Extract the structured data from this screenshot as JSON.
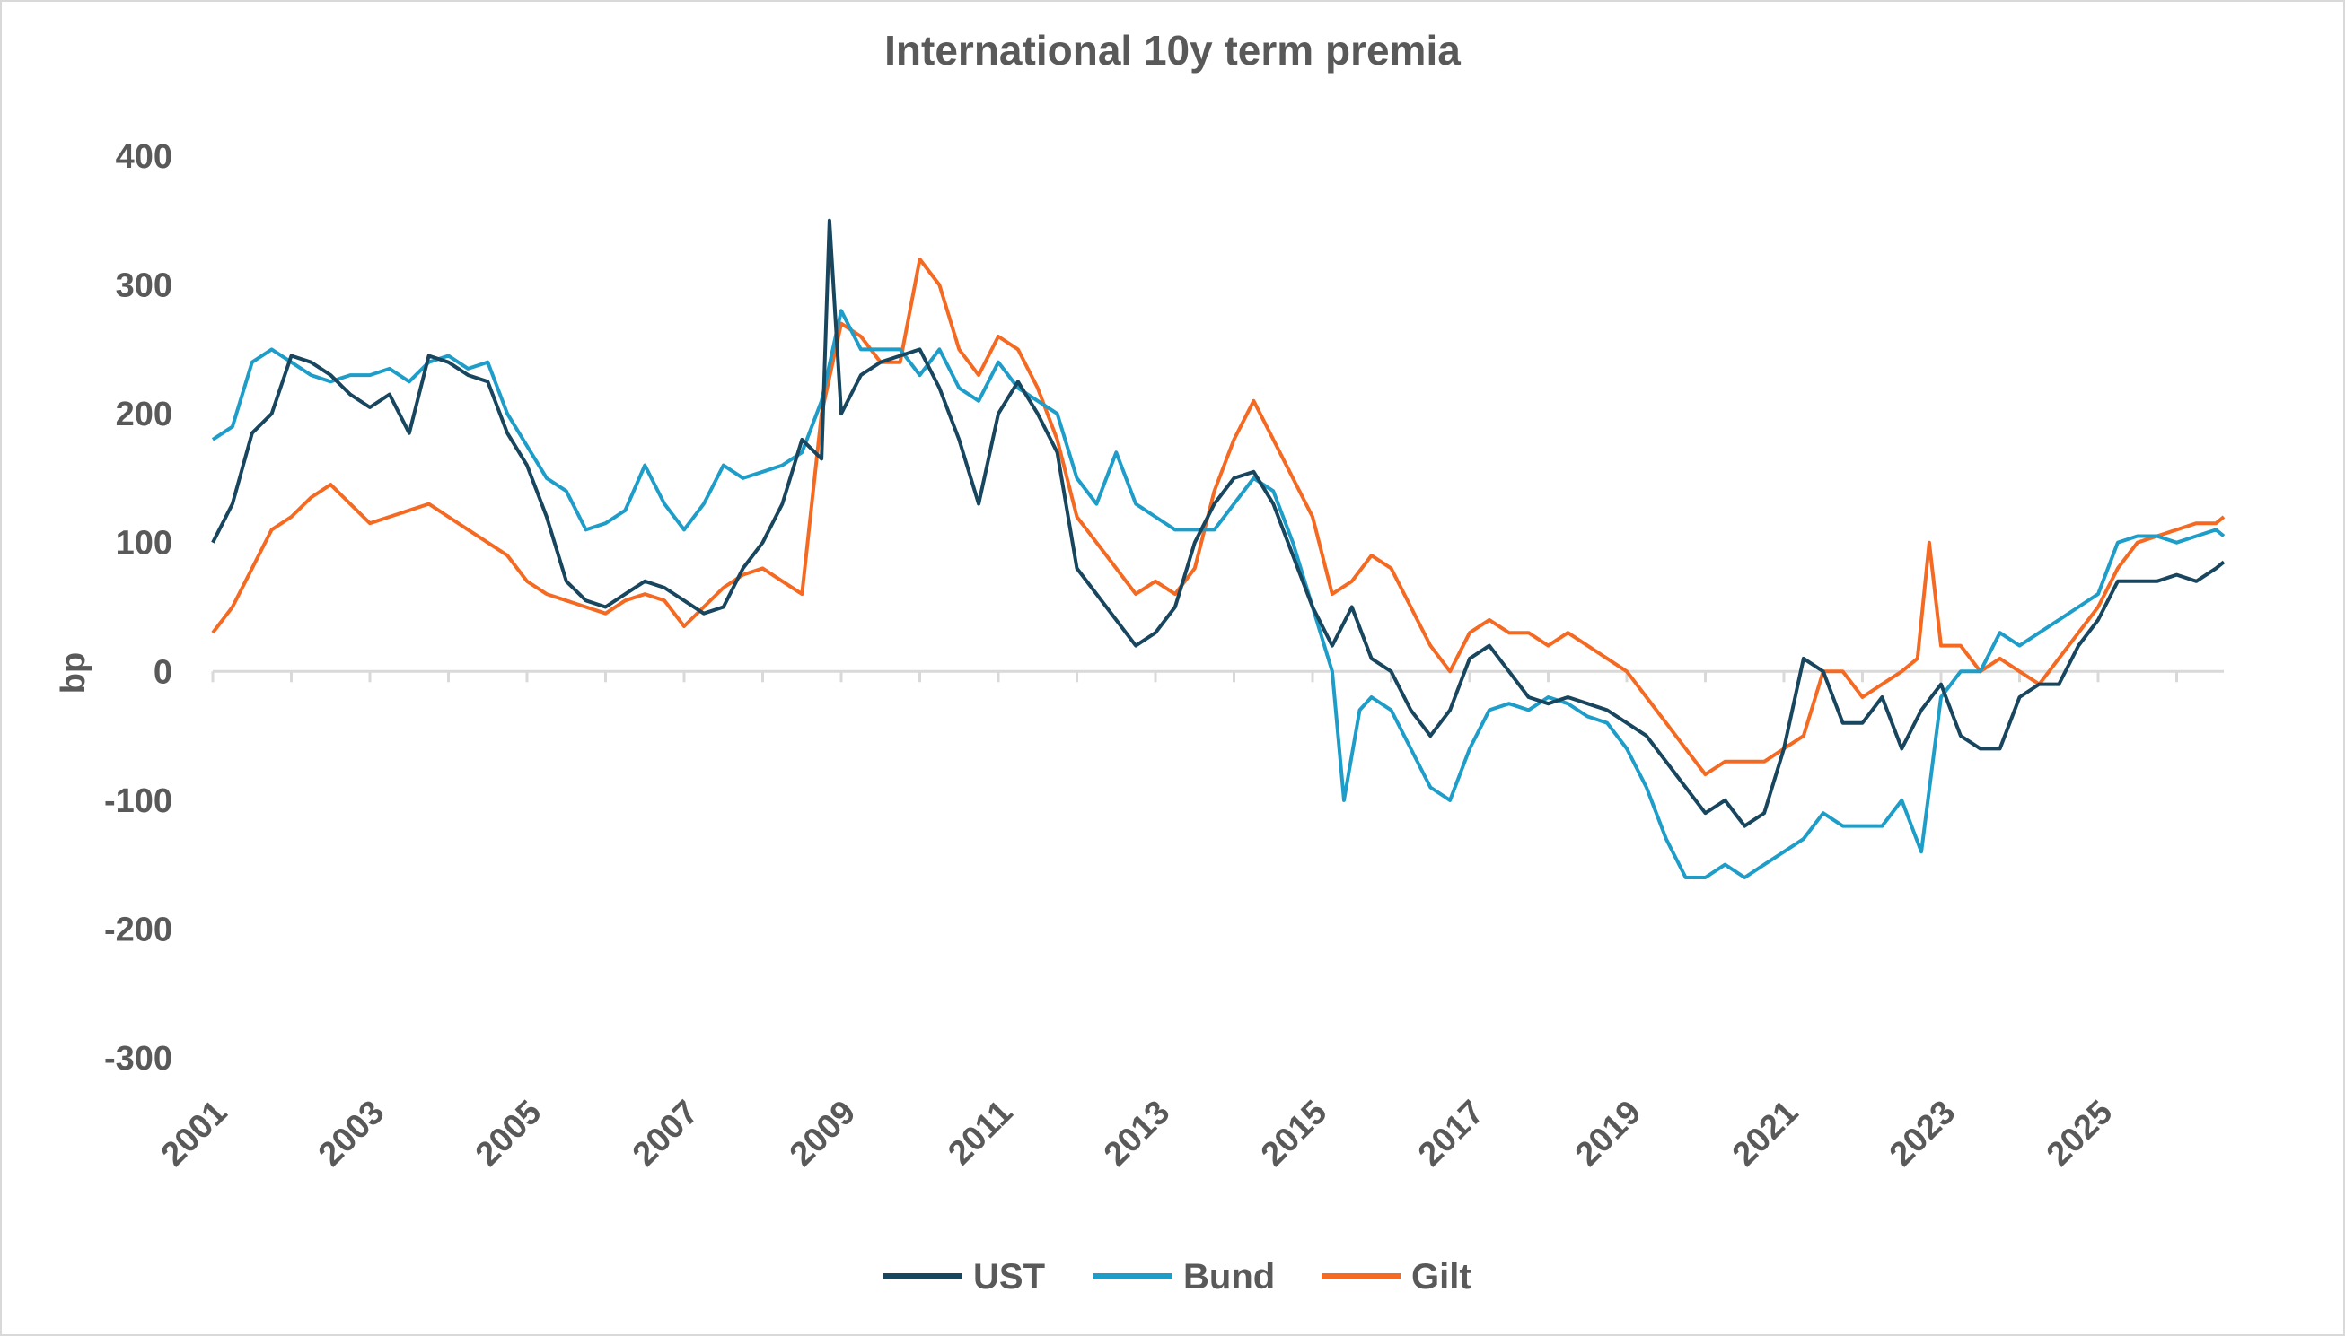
{
  "chart_data": {
    "type": "line",
    "title": "International 10y term premia",
    "xlabel": "",
    "ylabel": "bp",
    "ylim": [
      -300,
      400
    ],
    "yticks": [
      400,
      300,
      200,
      100,
      0,
      -100,
      -200,
      -300
    ],
    "xlim": [
      2001.0,
      2026.6
    ],
    "xticks": [
      "2001",
      "2003",
      "2005",
      "2007",
      "2009",
      "2011",
      "2013",
      "2015",
      "2017",
      "2019",
      "2021",
      "2023",
      "2025"
    ],
    "grid": false,
    "legend_position": "bottom",
    "colors": {
      "UST": "#17465e",
      "Bund": "#1f9dc9",
      "Gilt": "#f56a22",
      "axis": "#d9d9d9",
      "text": "#595959"
    },
    "series": [
      {
        "name": "UST",
        "x": [
          2001.0,
          2001.25,
          2001.5,
          2001.75,
          2002.0,
          2002.25,
          2002.5,
          2002.75,
          2003.0,
          2003.25,
          2003.5,
          2003.75,
          2004.0,
          2004.25,
          2004.5,
          2004.75,
          2005.0,
          2005.25,
          2005.5,
          2005.75,
          2006.0,
          2006.25,
          2006.5,
          2006.75,
          2007.0,
          2007.25,
          2007.5,
          2007.75,
          2008.0,
          2008.25,
          2008.5,
          2008.75,
          2008.85,
          2009.0,
          2009.25,
          2009.5,
          2009.75,
          2010.0,
          2010.25,
          2010.5,
          2010.75,
          2011.0,
          2011.25,
          2011.5,
          2011.75,
          2012.0,
          2012.25,
          2012.5,
          2012.75,
          2013.0,
          2013.25,
          2013.5,
          2013.75,
          2014.0,
          2014.25,
          2014.5,
          2014.75,
          2015.0,
          2015.25,
          2015.5,
          2015.75,
          2016.0,
          2016.25,
          2016.5,
          2016.75,
          2017.0,
          2017.25,
          2017.5,
          2017.75,
          2018.0,
          2018.25,
          2018.5,
          2018.75,
          2019.0,
          2019.25,
          2019.5,
          2019.75,
          2020.0,
          2020.25,
          2020.5,
          2020.75,
          2021.0,
          2021.25,
          2021.5,
          2021.75,
          2022.0,
          2022.25,
          2022.5,
          2022.75,
          2023.0,
          2023.25,
          2023.5,
          2023.75,
          2024.0,
          2024.25,
          2024.5,
          2024.75,
          2025.0,
          2025.25,
          2025.5,
          2025.75,
          2026.0,
          2026.25,
          2026.5,
          2026.6
        ],
        "values": [
          100,
          130,
          185,
          200,
          245,
          240,
          230,
          215,
          205,
          215,
          185,
          245,
          240,
          230,
          225,
          185,
          160,
          120,
          70,
          55,
          50,
          60,
          70,
          65,
          55,
          45,
          50,
          80,
          100,
          130,
          180,
          165,
          350,
          200,
          230,
          240,
          245,
          250,
          220,
          180,
          130,
          200,
          225,
          200,
          170,
          80,
          60,
          40,
          20,
          30,
          50,
          100,
          130,
          150,
          155,
          130,
          90,
          50,
          20,
          50,
          10,
          0,
          -30,
          -50,
          -30,
          10,
          20,
          0,
          -20,
          -25,
          -20,
          -25,
          -30,
          -40,
          -50,
          -70,
          -90,
          -110,
          -100,
          -120,
          -110,
          -60,
          10,
          0,
          -40,
          -40,
          -20,
          -60,
          -30,
          -10,
          -50,
          -60,
          -60,
          -20,
          -10,
          -10,
          20,
          40,
          70,
          70,
          70,
          75,
          70,
          80,
          85
        ]
      },
      {
        "name": "Bund",
        "x": [
          2001.0,
          2001.25,
          2001.5,
          2001.75,
          2002.0,
          2002.25,
          2002.5,
          2002.75,
          2003.0,
          2003.25,
          2003.5,
          2003.75,
          2004.0,
          2004.25,
          2004.5,
          2004.75,
          2005.0,
          2005.25,
          2005.5,
          2005.75,
          2006.0,
          2006.25,
          2006.5,
          2006.75,
          2007.0,
          2007.25,
          2007.5,
          2007.75,
          2008.0,
          2008.25,
          2008.5,
          2008.75,
          2009.0,
          2009.25,
          2009.5,
          2009.75,
          2010.0,
          2010.25,
          2010.5,
          2010.75,
          2011.0,
          2011.25,
          2011.5,
          2011.75,
          2012.0,
          2012.25,
          2012.5,
          2012.75,
          2013.0,
          2013.25,
          2013.5,
          2013.75,
          2014.0,
          2014.25,
          2014.5,
          2014.75,
          2015.0,
          2015.25,
          2015.4,
          2015.6,
          2015.75,
          2016.0,
          2016.25,
          2016.5,
          2016.75,
          2017.0,
          2017.25,
          2017.5,
          2017.75,
          2018.0,
          2018.25,
          2018.5,
          2018.75,
          2019.0,
          2019.25,
          2019.5,
          2019.75,
          2020.0,
          2020.25,
          2020.5,
          2020.75,
          2021.0,
          2021.25,
          2021.5,
          2021.75,
          2022.0,
          2022.25,
          2022.5,
          2022.75,
          2023.0,
          2023.25,
          2023.5,
          2023.75,
          2024.0,
          2024.25,
          2024.5,
          2024.75,
          2025.0,
          2025.25,
          2025.5,
          2025.75,
          2026.0,
          2026.25,
          2026.5,
          2026.6
        ],
        "values": [
          180,
          190,
          240,
          250,
          240,
          230,
          225,
          230,
          230,
          235,
          225,
          240,
          245,
          235,
          240,
          200,
          175,
          150,
          140,
          110,
          115,
          125,
          160,
          130,
          110,
          130,
          160,
          150,
          155,
          160,
          170,
          210,
          280,
          250,
          250,
          250,
          230,
          250,
          220,
          210,
          240,
          220,
          210,
          200,
          150,
          130,
          170,
          130,
          120,
          110,
          110,
          110,
          130,
          150,
          140,
          100,
          50,
          0,
          -100,
          -30,
          -20,
          -30,
          -60,
          -90,
          -100,
          -60,
          -30,
          -25,
          -30,
          -20,
          -25,
          -35,
          -40,
          -60,
          -90,
          -130,
          -160,
          -160,
          -150,
          -160,
          -150,
          -140,
          -130,
          -110,
          -120,
          -120,
          -120,
          -100,
          -140,
          -20,
          0,
          0,
          30,
          20,
          30,
          40,
          50,
          60,
          100,
          105,
          105,
          100,
          105,
          110,
          105
        ]
      },
      {
        "name": "Gilt",
        "x": [
          2001.0,
          2001.25,
          2001.5,
          2001.75,
          2002.0,
          2002.25,
          2002.5,
          2002.75,
          2003.0,
          2003.25,
          2003.5,
          2003.75,
          2004.0,
          2004.25,
          2004.5,
          2004.75,
          2005.0,
          2005.25,
          2005.5,
          2005.75,
          2006.0,
          2006.25,
          2006.5,
          2006.75,
          2007.0,
          2007.25,
          2007.5,
          2007.75,
          2008.0,
          2008.25,
          2008.5,
          2008.75,
          2009.0,
          2009.25,
          2009.5,
          2009.75,
          2010.0,
          2010.25,
          2010.5,
          2010.75,
          2011.0,
          2011.25,
          2011.5,
          2011.75,
          2012.0,
          2012.25,
          2012.5,
          2012.75,
          2013.0,
          2013.25,
          2013.5,
          2013.75,
          2014.0,
          2014.25,
          2014.5,
          2014.75,
          2015.0,
          2015.25,
          2015.5,
          2015.75,
          2016.0,
          2016.25,
          2016.5,
          2016.75,
          2017.0,
          2017.25,
          2017.5,
          2017.75,
          2018.0,
          2018.25,
          2018.5,
          2018.75,
          2019.0,
          2019.25,
          2019.5,
          2019.75,
          2020.0,
          2020.25,
          2020.5,
          2020.75,
          2021.0,
          2021.25,
          2021.5,
          2021.75,
          2022.0,
          2022.25,
          2022.5,
          2022.7,
          2022.85,
          2023.0,
          2023.25,
          2023.5,
          2023.75,
          2024.0,
          2024.25,
          2024.5,
          2024.75,
          2025.0,
          2025.25,
          2025.5,
          2025.75,
          2026.0,
          2026.25,
          2026.5,
          2026.6
        ],
        "values": [
          30,
          50,
          80,
          110,
          120,
          135,
          145,
          130,
          115,
          120,
          125,
          130,
          120,
          110,
          100,
          90,
          70,
          60,
          55,
          50,
          45,
          55,
          60,
          55,
          35,
          50,
          65,
          75,
          80,
          70,
          60,
          200,
          270,
          260,
          240,
          240,
          320,
          300,
          250,
          230,
          260,
          250,
          220,
          180,
          120,
          100,
          80,
          60,
          70,
          60,
          80,
          140,
          180,
          210,
          180,
          150,
          120,
          60,
          70,
          90,
          80,
          50,
          20,
          0,
          30,
          40,
          30,
          30,
          20,
          30,
          20,
          10,
          0,
          -20,
          -40,
          -60,
          -80,
          -70,
          -70,
          -70,
          -60,
          -50,
          0,
          0,
          -20,
          -10,
          0,
          10,
          100,
          20,
          20,
          0,
          10,
          0,
          -10,
          10,
          30,
          50,
          80,
          100,
          105,
          110,
          115,
          115,
          120
        ]
      }
    ]
  }
}
